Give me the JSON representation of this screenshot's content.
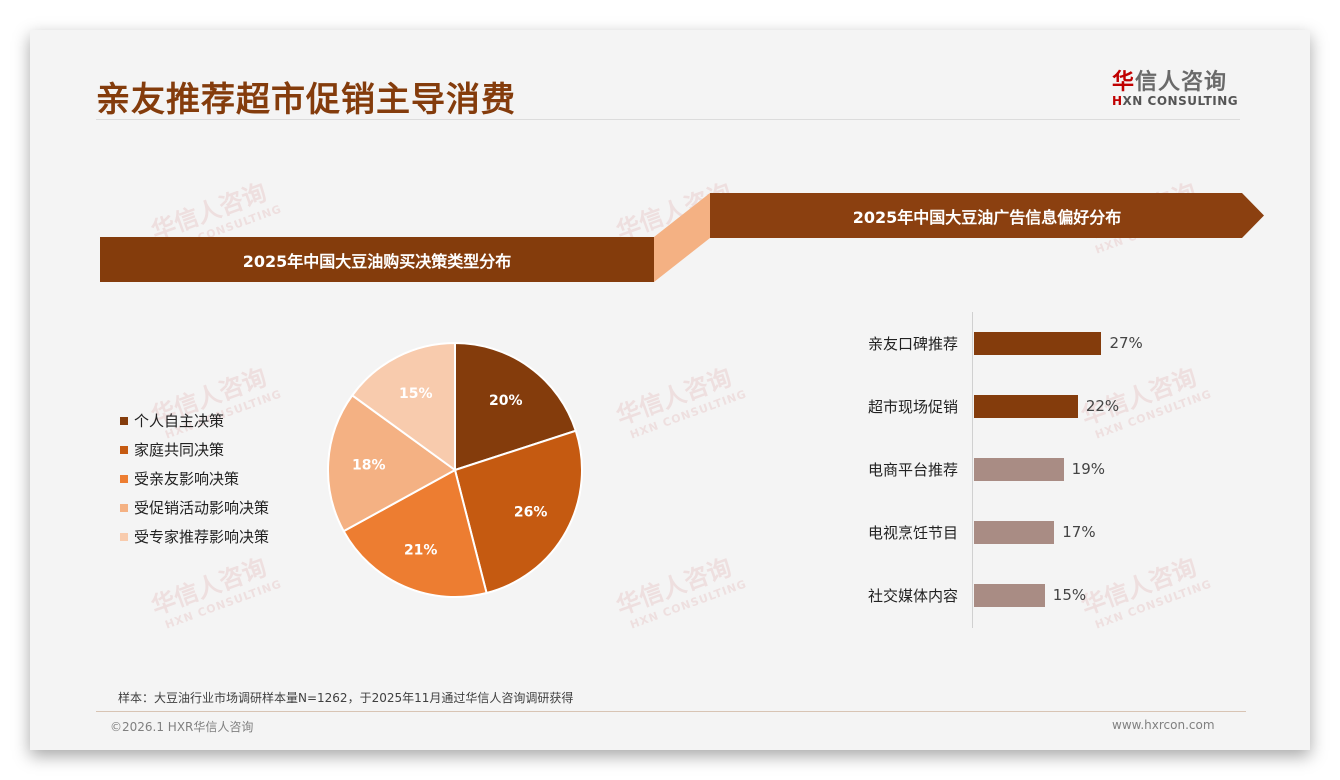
{
  "header": {
    "title": "亲友推荐超市促销主导消费",
    "logo_cn_first": "华",
    "logo_cn_rest": "信人咨询",
    "logo_en_first": "H",
    "logo_en_rest": "XN CONSULTING"
  },
  "watermark": {
    "cn": "华信人咨询",
    "en": "HXN CONSULTING"
  },
  "left_panel": {
    "banner": "2025年中国大豆油购买决策类型分布"
  },
  "right_panel": {
    "banner": "2025年中国大豆油广告信息偏好分布"
  },
  "colors": {
    "brand": "#843c0c",
    "banner_connector": "#f4b183",
    "pie": [
      "#843c0c",
      "#c55a11",
      "#ed7d31",
      "#f4b183",
      "#f8cbad"
    ],
    "bar_dark": "#843c0c",
    "bar_light": "#a98c84"
  },
  "chart_data": [
    {
      "type": "pie",
      "title": "2025年中国大豆油购买决策类型分布",
      "categories": [
        "个人自主决策",
        "家庭共同决策",
        "受亲友影响决策",
        "受促销活动影响决策",
        "受专家推荐影响决策"
      ],
      "values": [
        20,
        26,
        21,
        18,
        15
      ],
      "labels": [
        "20%",
        "26%",
        "21%",
        "18%",
        "15%"
      ],
      "legend_position": "left",
      "start_angle": "12 o'clock, clockwise"
    },
    {
      "type": "bar",
      "orientation": "horizontal",
      "title": "2025年中国大豆油广告信息偏好分布",
      "categories": [
        "亲友口碑推荐",
        "超市现场促销",
        "电商平台推荐",
        "电视烹饪节目",
        "社交媒体内容"
      ],
      "values": [
        27,
        22,
        19,
        17,
        15
      ],
      "labels": [
        "27%",
        "22%",
        "19%",
        "17%",
        "15%"
      ],
      "grid": false,
      "xlabel": "",
      "ylabel": ""
    }
  ],
  "legend": [
    {
      "label": "个人自主决策"
    },
    {
      "label": "家庭共同决策"
    },
    {
      "label": "受亲友影响决策"
    },
    {
      "label": "受促销活动影响决策"
    },
    {
      "label": "受专家推荐影响决策"
    }
  ],
  "bars": [
    {
      "label": "亲友口碑推荐",
      "value": "27%"
    },
    {
      "label": "超市现场促销",
      "value": "22%"
    },
    {
      "label": "电商平台推荐",
      "value": "19%"
    },
    {
      "label": "电视烹饪节目",
      "value": "17%"
    },
    {
      "label": "社交媒体内容",
      "value": "15%"
    }
  ],
  "footer": {
    "note": "样本：大豆油行业市场调研样本量N=1262，于2025年11月通过华信人咨询调研获得",
    "copyright": "©2026.1 HXR华信人咨询",
    "website": "www.hxrcon.com"
  }
}
